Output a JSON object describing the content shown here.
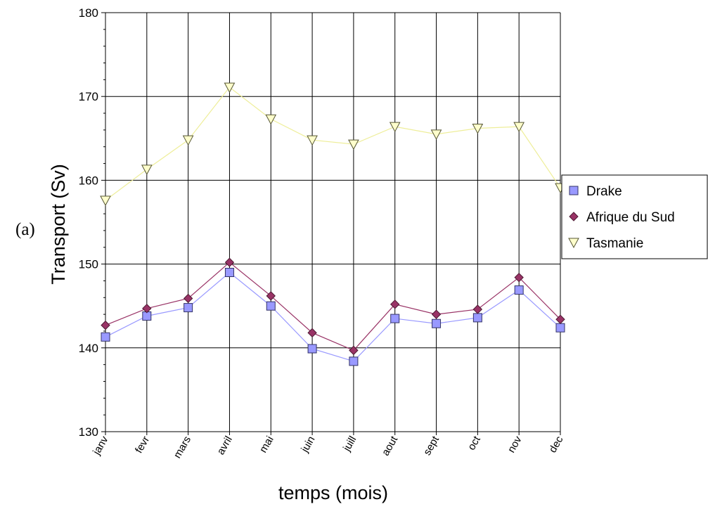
{
  "panel_label": "(a)",
  "chart_data": {
    "type": "line",
    "xlabel": "temps (mois)",
    "ylabel": "Transport (Sv)",
    "categories": [
      "janv",
      "fevr",
      "mars",
      "avril",
      "mai",
      "juin",
      "juill",
      "aout",
      "sept",
      "oct",
      "nov",
      "dec"
    ],
    "ylim": [
      130,
      180
    ],
    "yticks": [
      130,
      140,
      150,
      160,
      170,
      180
    ],
    "grid": "vertical and horizontal",
    "legend_position": "right",
    "series": [
      {
        "name": "Drake",
        "marker": "square",
        "color": "#9999ff",
        "values": [
          141.3,
          143.8,
          144.8,
          149.0,
          145.0,
          139.9,
          138.4,
          143.5,
          142.9,
          143.6,
          146.9,
          142.4
        ]
      },
      {
        "name": "Afrique du Sud",
        "marker": "diamond",
        "color": "#993366",
        "values": [
          142.7,
          144.7,
          145.9,
          150.2,
          146.2,
          141.8,
          139.7,
          145.2,
          144.0,
          144.6,
          148.4,
          143.4
        ]
      },
      {
        "name": "Tasmanie",
        "marker": "triangle-down",
        "color": "#ffffcc",
        "values": [
          157.6,
          161.3,
          164.8,
          171.1,
          167.3,
          164.8,
          164.3,
          166.4,
          165.5,
          166.2,
          166.4,
          159.1
        ]
      }
    ]
  }
}
